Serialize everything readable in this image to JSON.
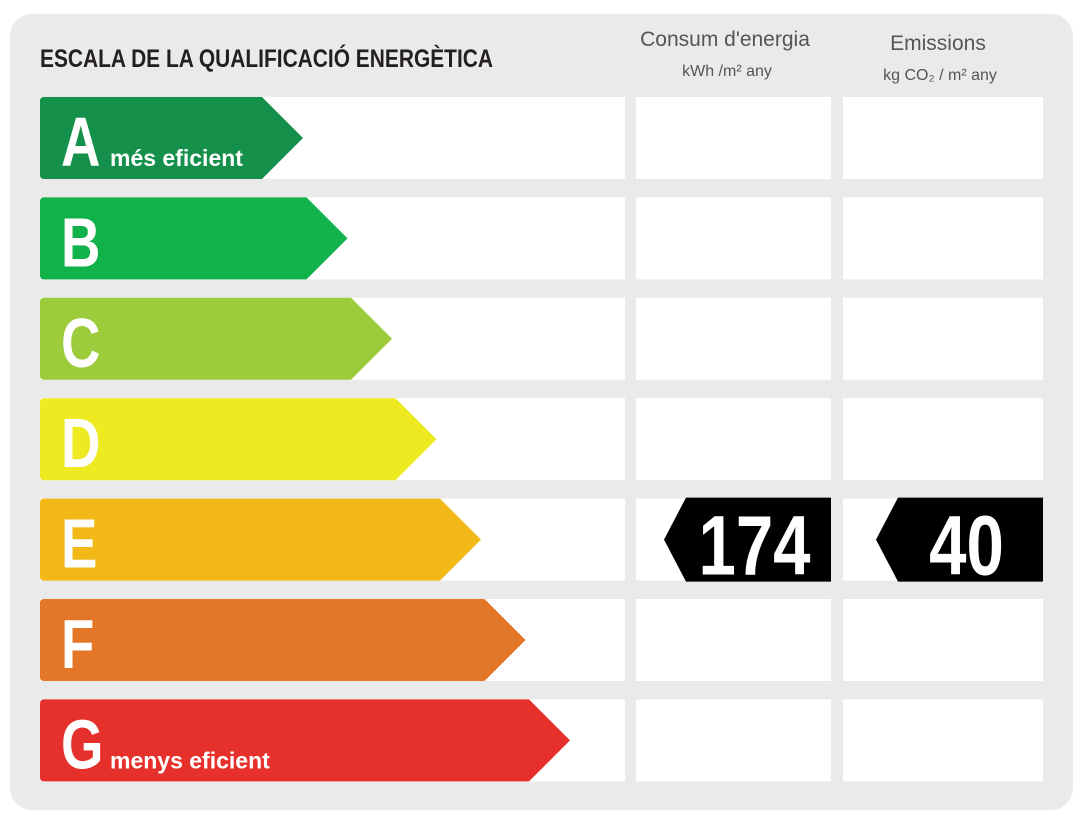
{
  "header": {
    "title": "ESCALA DE LA QUALIFICACIÓ ENERGÈTICA",
    "columns": [
      {
        "title": "Consum d'energia",
        "unit": "kWh /m² any"
      },
      {
        "title": "Emissions",
        "unit": "kg CO₂ / m² any"
      }
    ]
  },
  "ratings": [
    {
      "letter": "A",
      "note": "més eficient",
      "color": "#14904a"
    },
    {
      "letter": "B",
      "color": "#12b24b"
    },
    {
      "letter": "C",
      "color": "#9ccb3b"
    },
    {
      "letter": "D",
      "color": "#eeea22"
    },
    {
      "letter": "E",
      "color": "#f2b818"
    },
    {
      "letter": "F",
      "color": "#e47628"
    },
    {
      "letter": "G",
      "note": "menys eficient",
      "color": "#e6302c"
    }
  ],
  "result": {
    "rating": "E",
    "values": [
      174,
      40
    ]
  }
}
